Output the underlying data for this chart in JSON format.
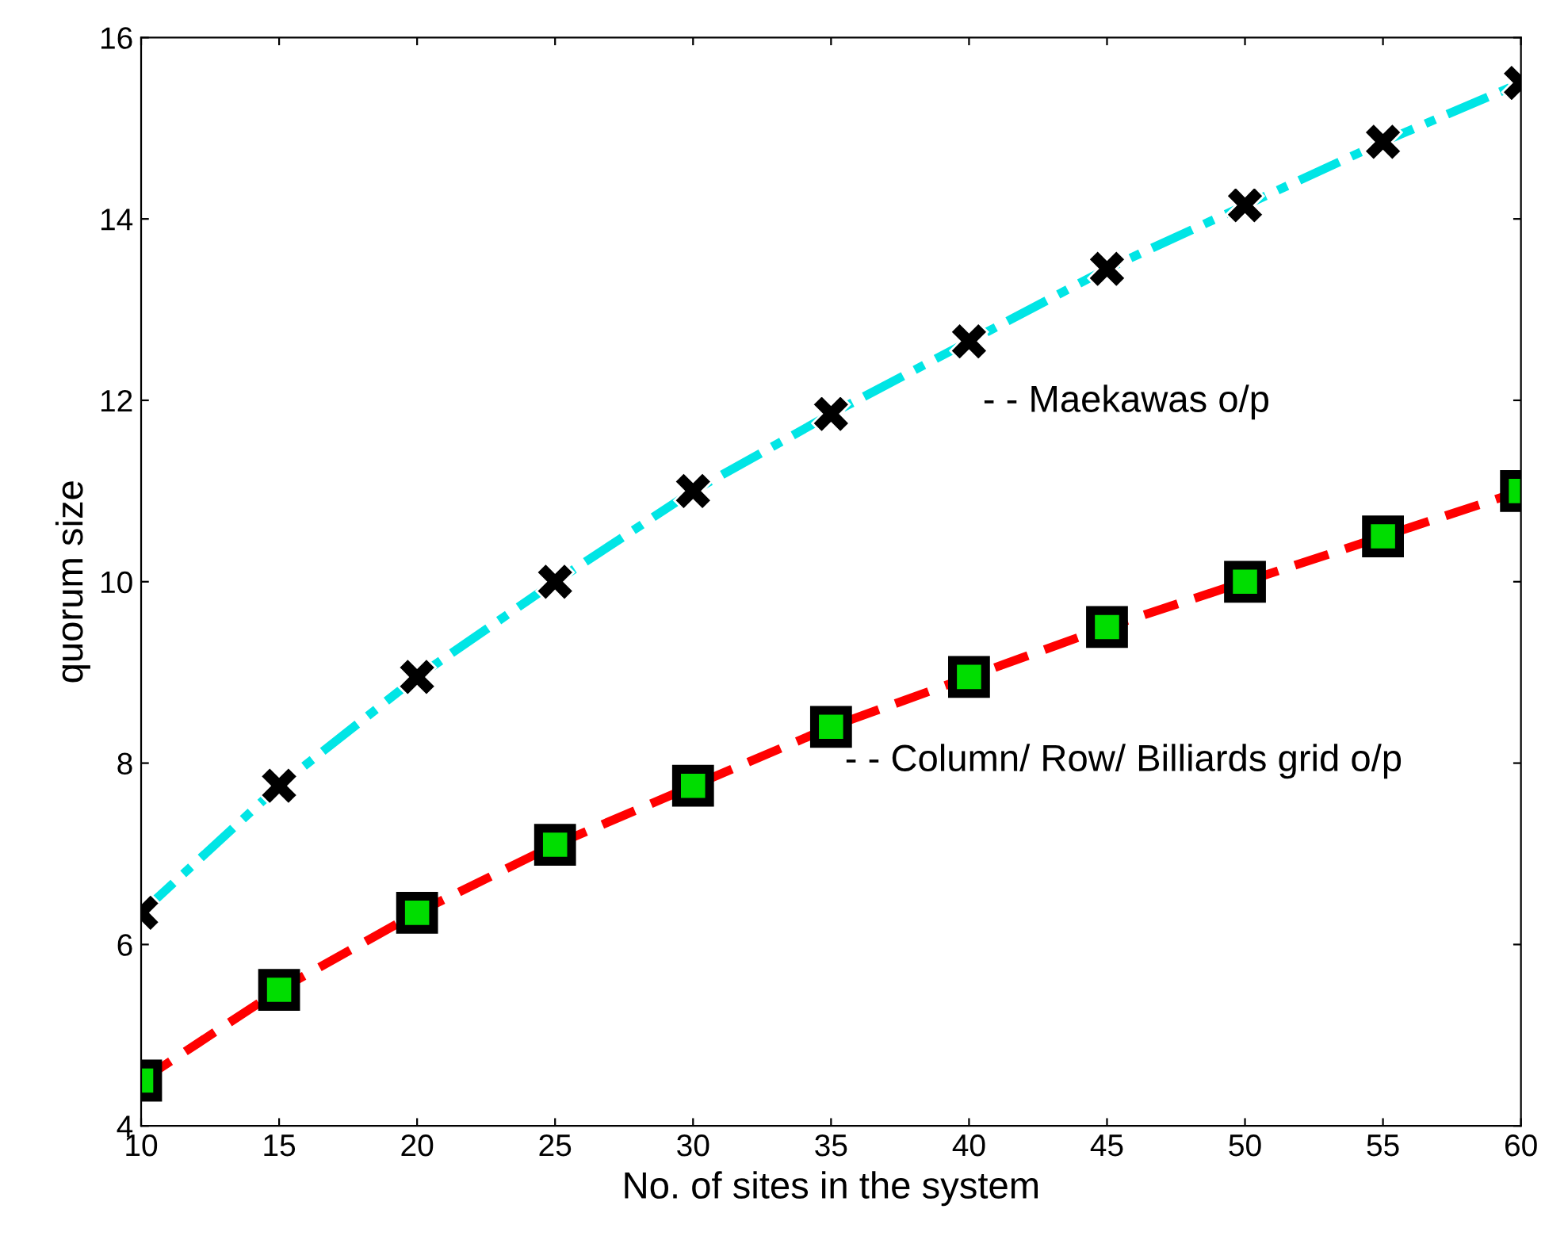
{
  "chart_data": {
    "type": "line",
    "xlabel": "No. of sites in the system",
    "ylabel": "quorum size",
    "x": [
      10,
      15,
      20,
      25,
      30,
      35,
      40,
      45,
      50,
      55,
      60
    ],
    "series": [
      {
        "color": "#00e5e5",
        "line_style": "dashdot",
        "marker": "cross",
        "values": [
          6.35,
          7.75,
          8.95,
          10,
          11,
          11.85,
          12.65,
          13.45,
          14.15,
          14.85,
          15.5
        ]
      },
      {
        "color": "#ff0000",
        "line_style": "dashed",
        "marker": "square",
        "values": [
          4.5,
          5.5,
          6.35,
          7.1,
          7.75,
          8.4,
          8.95,
          9.5,
          10,
          10.5,
          11
        ]
      }
    ],
    "annotations": [
      "- - Maekawas o/p",
      "- - Column/ Row/ Billiards grid o/p"
    ],
    "xlim": [
      10,
      60
    ],
    "xticks": [
      10,
      15,
      20,
      25,
      30,
      35,
      40,
      45,
      50,
      55,
      60
    ],
    "ylim": [
      4,
      16
    ],
    "yticks": [
      4,
      6,
      8,
      10,
      12,
      14,
      16
    ],
    "grid": false,
    "legend": false
  }
}
